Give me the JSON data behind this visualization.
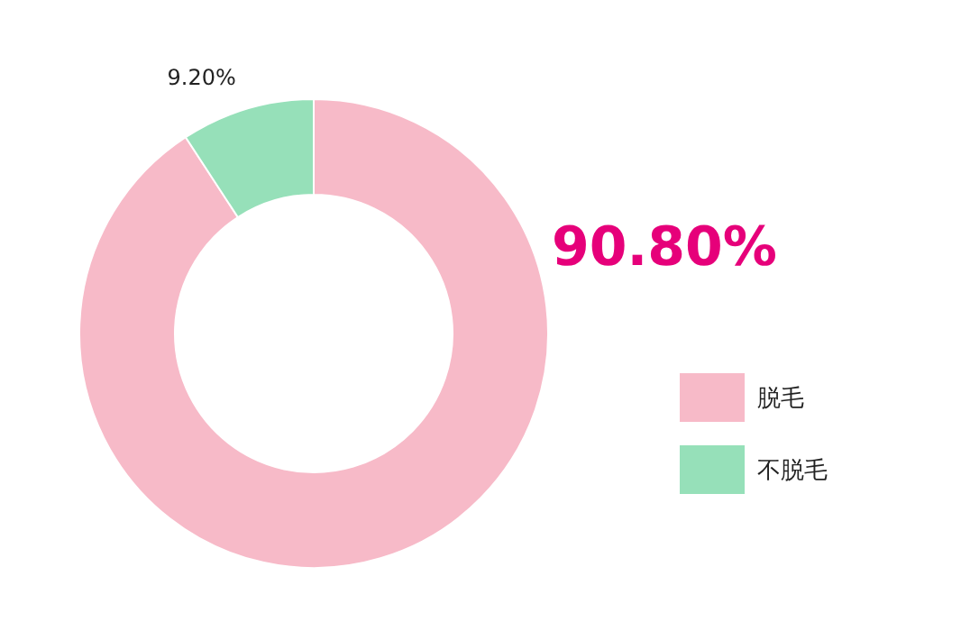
{
  "chart_data": {
    "type": "donut",
    "categories": [
      "脱毛",
      "不脱毛"
    ],
    "values": [
      90.8,
      9.2
    ],
    "colors": [
      "#f7bac8",
      "#96e0b9"
    ],
    "value_labels": [
      "90.80%",
      "9.20%"
    ],
    "legend": "right"
  }
}
